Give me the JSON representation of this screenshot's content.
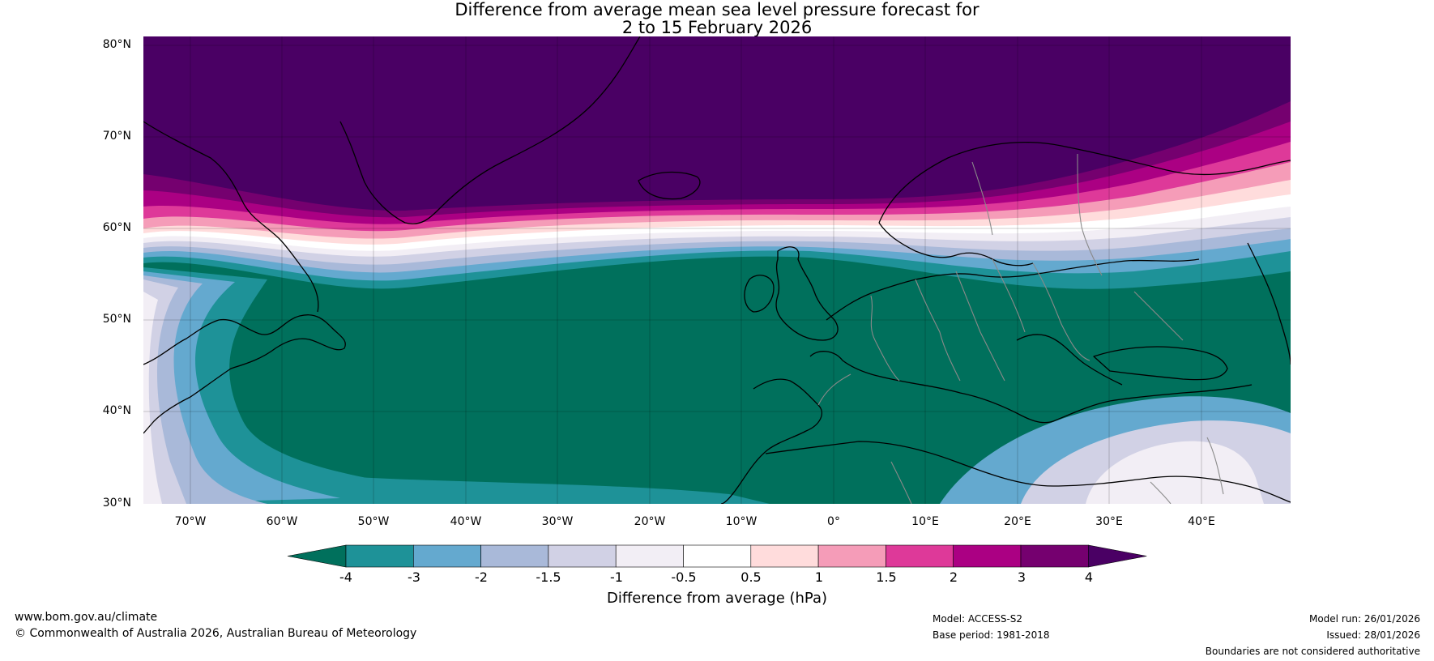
{
  "title": {
    "line1": "Difference from average mean sea level pressure forecast for",
    "line2": "2 to 15 February 2026"
  },
  "lat_labels": [
    "80°N",
    "70°N",
    "60°N",
    "50°N",
    "40°N",
    "30°N"
  ],
  "lon_labels": [
    "70°W",
    "60°W",
    "50°W",
    "40°W",
    "30°W",
    "20°W",
    "10°W",
    "0°",
    "10°E",
    "20°E",
    "30°E",
    "40°E"
  ],
  "colorbar": {
    "title": "Difference from average (hPa)",
    "ticks": [
      "-4",
      "-3",
      "-2",
      "-1.5",
      "-1",
      "-0.5",
      "0.5",
      "1",
      "1.5",
      "2",
      "3",
      "4"
    ],
    "colors": [
      "#00705c",
      "#1e9298",
      "#64a9cf",
      "#a9b9d9",
      "#d1d1e5",
      "#f2eef5",
      "#ffffff",
      "#ffdcdc",
      "#f59cb8",
      "#de3999",
      "#ab0083",
      "#75006f",
      "#4a0064"
    ]
  },
  "footer": {
    "site": "www.bom.gov.au/climate",
    "copyright": "© Commonwealth of Australia 2026, Australian Bureau of Meteorology",
    "model": "Model: ACCESS-S2",
    "base_period": "Base period: 1981-2018",
    "model_run": "Model run: 26/01/2026",
    "issued": "Issued: 28/01/2026",
    "disclaimer": "Boundaries are not considered authoritative"
  }
}
